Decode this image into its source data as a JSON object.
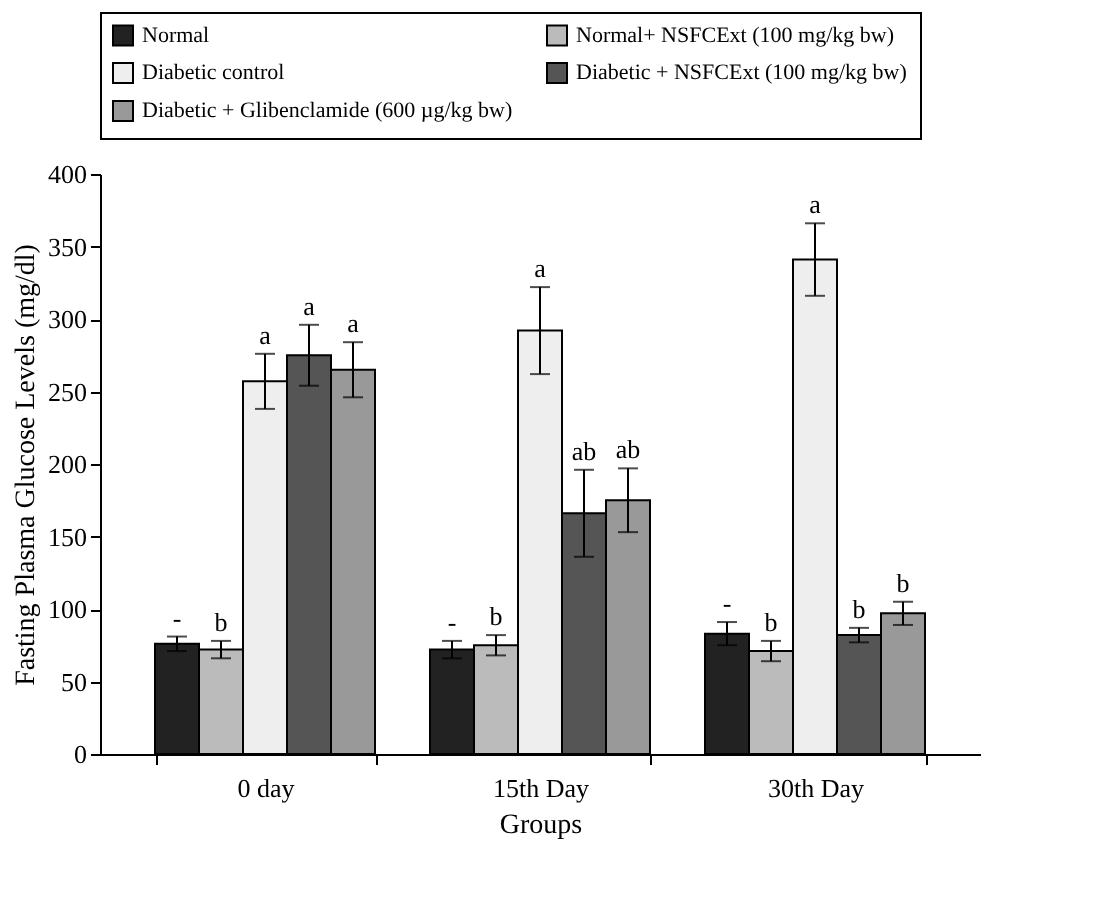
{
  "chart_data": {
    "type": "bar",
    "xlabel": "Groups",
    "ylabel": "Fasting Plasma Glucose Levels (mg/dl)",
    "categories": [
      "0 day",
      "15th Day",
      "30th Day"
    ],
    "series": [
      {
        "name": "Normal",
        "color": "#222222",
        "values": [
          76,
          72,
          83
        ],
        "errors": [
          5,
          6,
          8
        ],
        "value_labels": [
          "-",
          "-",
          "-"
        ]
      },
      {
        "name": "Normal+ NSFCExt (100 mg/kg bw)",
        "color": "#bbbbbb",
        "values": [
          72,
          75,
          71
        ],
        "errors": [
          6,
          7,
          7
        ],
        "value_labels": [
          "b",
          "b",
          "b"
        ]
      },
      {
        "name": "Diabetic control",
        "color": "#eeeeee",
        "values": [
          257,
          292,
          341
        ],
        "errors": [
          19,
          30,
          25
        ],
        "value_labels": [
          "a",
          "a",
          "a"
        ]
      },
      {
        "name": "Diabetic + NSFCExt (100 mg/kg bw)",
        "color": "#555555",
        "values": [
          275,
          166,
          82
        ],
        "errors": [
          21,
          30,
          5
        ],
        "value_labels": [
          "a",
          "ab",
          "b"
        ]
      },
      {
        "name": "Diabetic + Glibenclamide (600 µg/kg bw)",
        "color": "#999999",
        "values": [
          265,
          175,
          97
        ],
        "errors": [
          19,
          22,
          8
        ],
        "value_labels": [
          "a",
          "ab",
          "b"
        ]
      }
    ],
    "ylim": [
      0,
      400
    ],
    "yticks": [
      0,
      50,
      100,
      150,
      200,
      250,
      300,
      350,
      400
    ],
    "grid": false,
    "legend": "top"
  }
}
